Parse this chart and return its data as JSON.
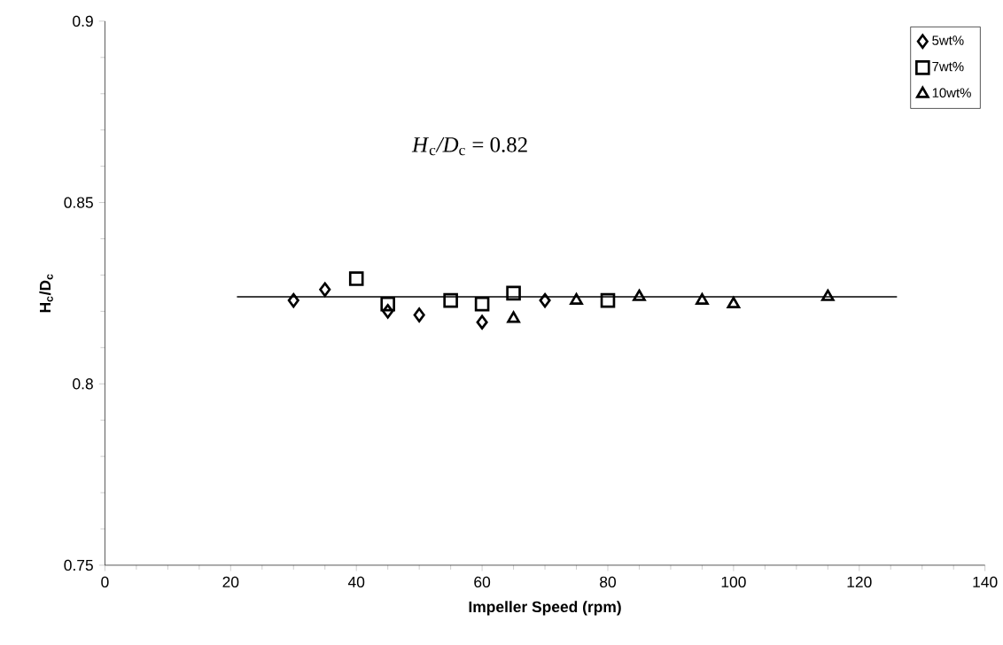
{
  "chart_data": {
    "type": "scatter",
    "xlabel": "Impeller Speed (rpm)",
    "ylabel": "H$_{c}$/D$_{c}$",
    "xlim": [
      0,
      140
    ],
    "xticks": [
      0,
      20,
      40,
      60,
      80,
      100,
      120,
      140
    ],
    "ylim": [
      0.75,
      0.9
    ],
    "yticks": [
      0.75,
      0.8,
      0.85,
      0.9
    ],
    "grid": false,
    "legend": "top right",
    "annotations": [
      "*H*$_{c}$*/D*$_{c}$ = 0.82"
    ],
    "series": [
      {
        "name": "5wt%",
        "color": "#000000",
        "marker": "diamond",
        "x": [
          30,
          35,
          45,
          50,
          60,
          70
        ],
        "values": [
          0.823,
          0.826,
          0.82,
          0.819,
          0.817,
          0.823
        ]
      },
      {
        "name": "7wt%",
        "color": "#000000",
        "marker": "square",
        "x": [
          40,
          45,
          55,
          60,
          65,
          80
        ],
        "values": [
          0.829,
          0.822,
          0.823,
          0.822,
          0.825,
          0.823
        ]
      },
      {
        "name": "10wt%",
        "color": "#000000",
        "marker": "triangle",
        "x": [
          65,
          75,
          85,
          95,
          100,
          115
        ],
        "values": [
          0.818,
          0.823,
          0.824,
          0.823,
          0.822,
          0.824
        ]
      },
      {
        "type": "line",
        "color": "#000000",
        "line_style": "solid",
        "x": [
          21,
          126
        ],
        "values": [
          0.824,
          0.824
        ]
      }
    ]
  }
}
